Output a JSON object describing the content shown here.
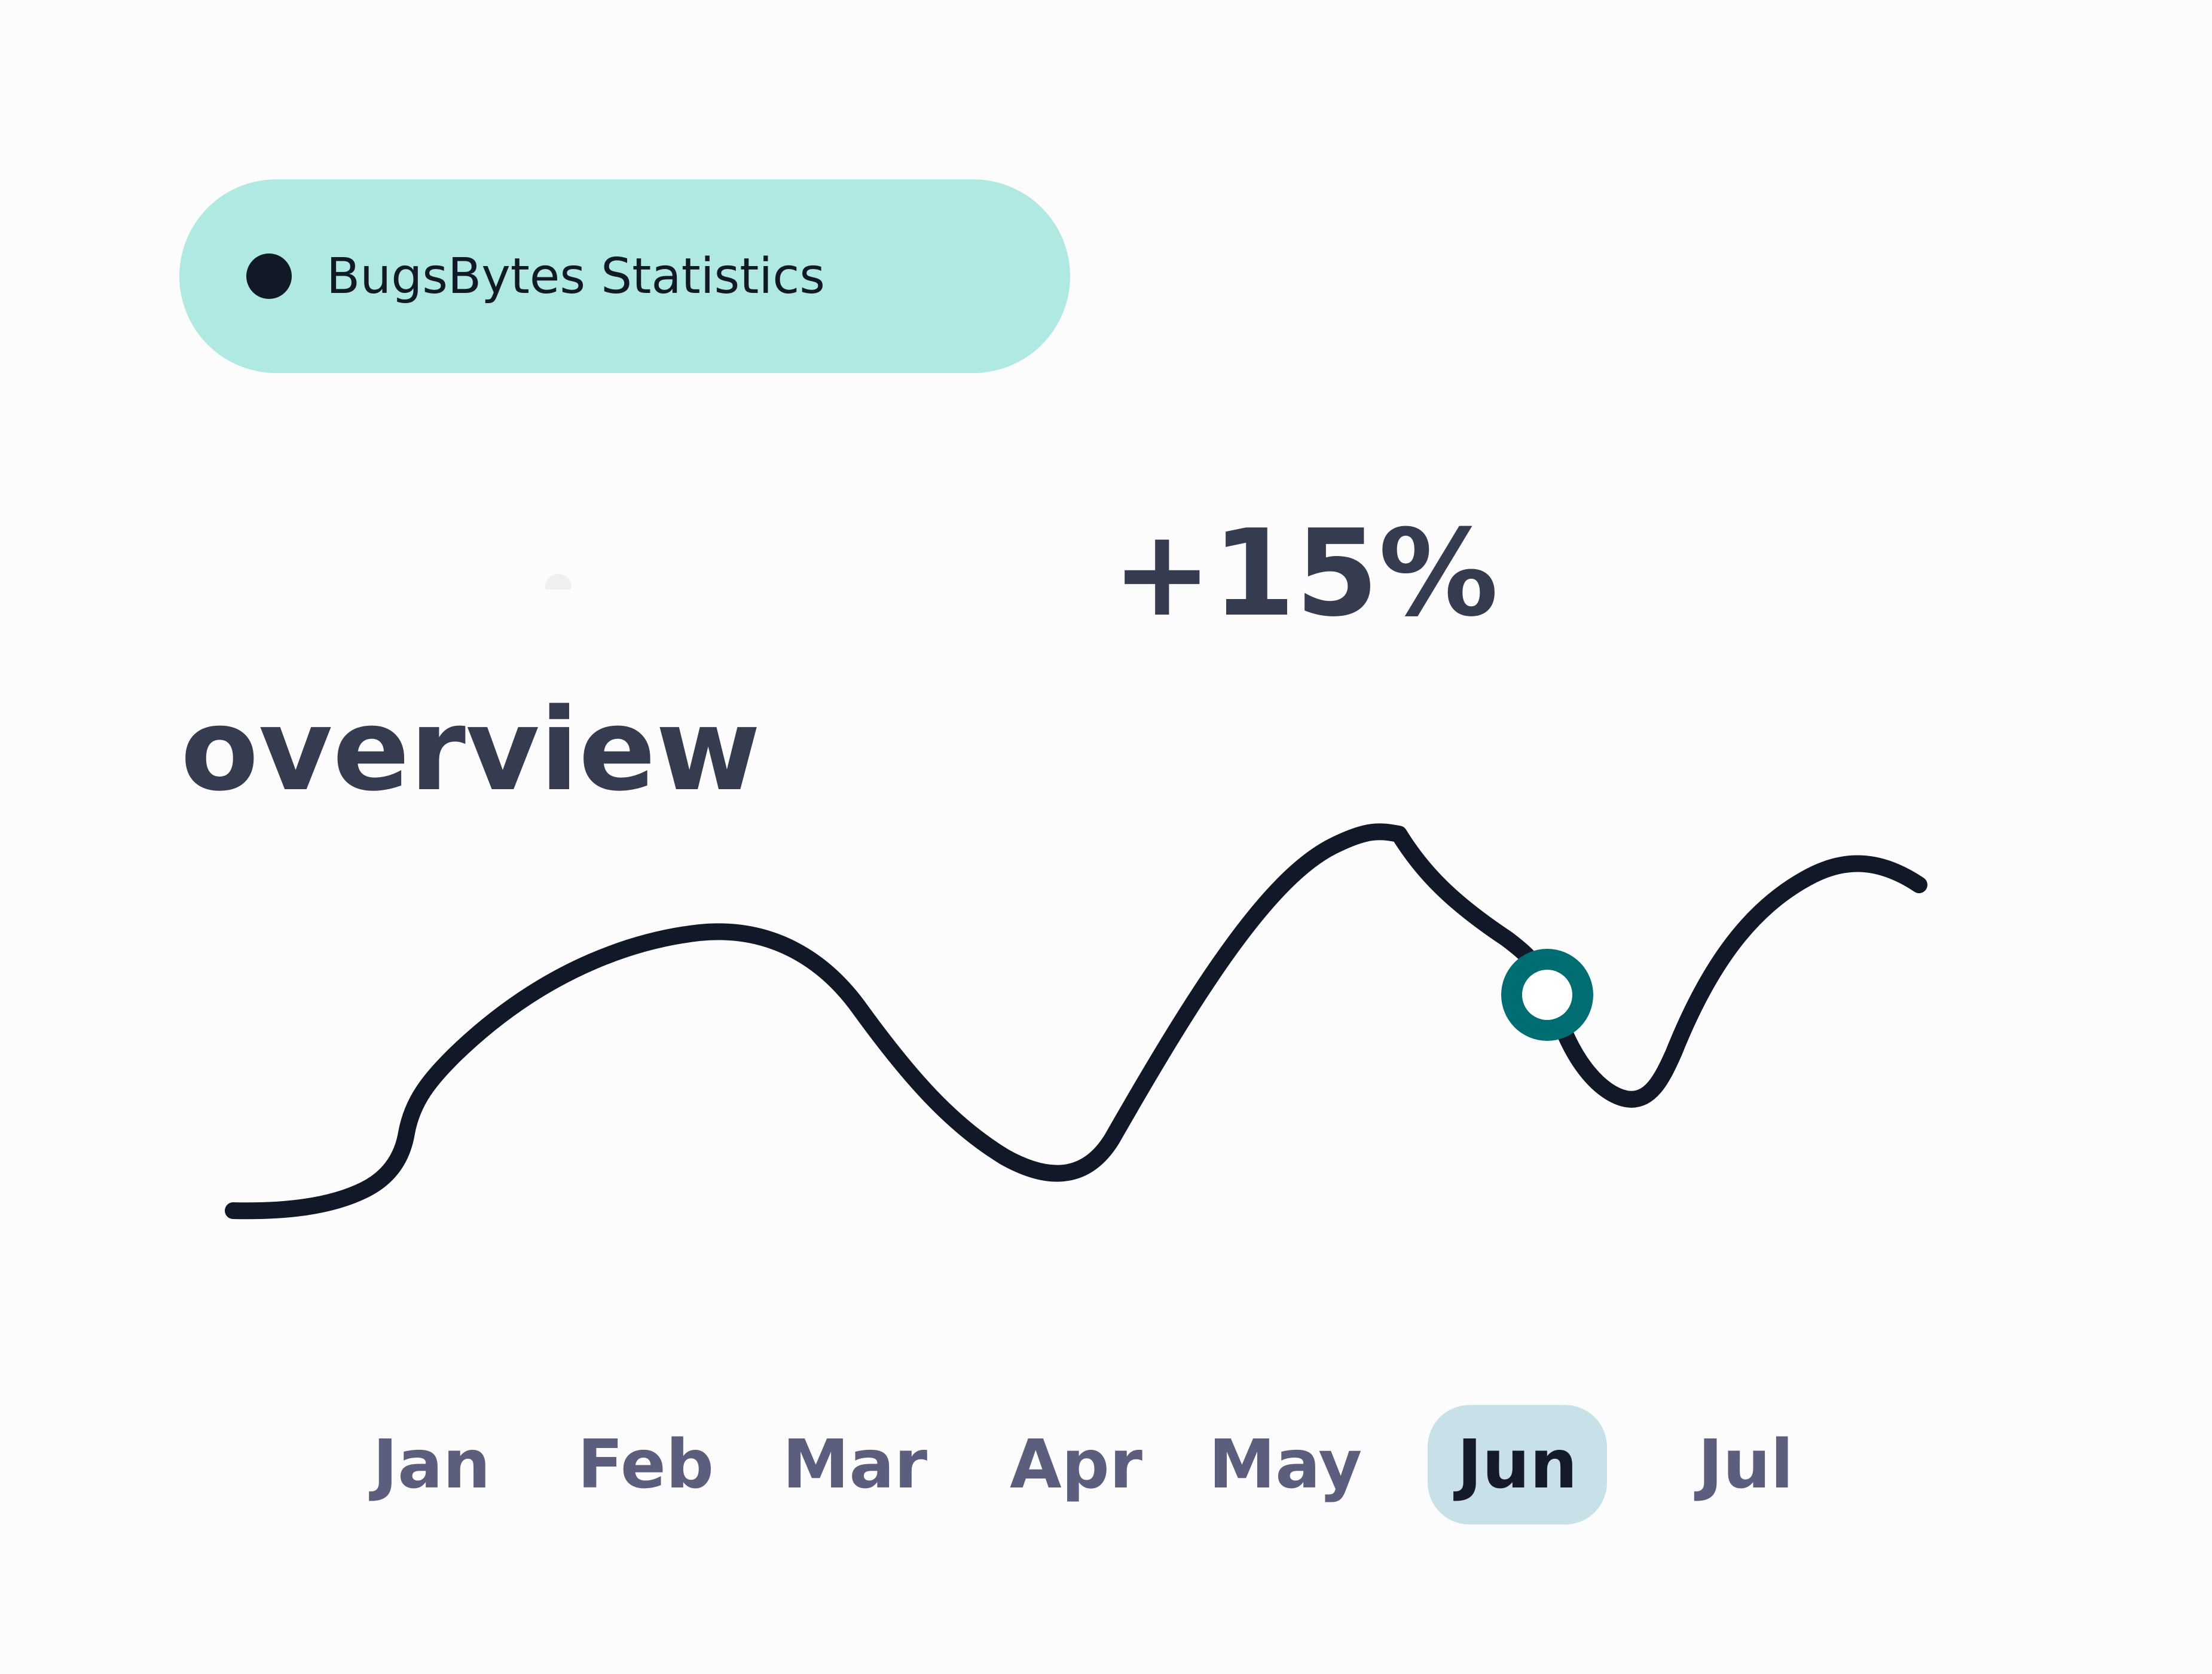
{
  "header": {
    "badge_label": "BugsBytes Statistics"
  },
  "summary": {
    "change": "+15%",
    "title": "overview"
  },
  "colors": {
    "badge_background": "#afe9e1",
    "line": "#111827",
    "marker": "#006d73",
    "text": "#353c4f",
    "month_text": "#5c5e7e",
    "selected_month_background": "#c8e1e8"
  },
  "chart_data": {
    "type": "line",
    "categories": [
      "Jan",
      "Feb",
      "Mar",
      "Apr",
      "May",
      "Jun",
      "Jul"
    ],
    "selected": "Jun",
    "y_axis_shown": false,
    "grid": false
  },
  "months": [
    {
      "label": "Jan"
    },
    {
      "label": "Feb"
    },
    {
      "label": "Mar"
    },
    {
      "label": "Apr"
    },
    {
      "label": "May"
    },
    {
      "label": "Jun",
      "selected": true
    },
    {
      "label": "Jul"
    }
  ]
}
